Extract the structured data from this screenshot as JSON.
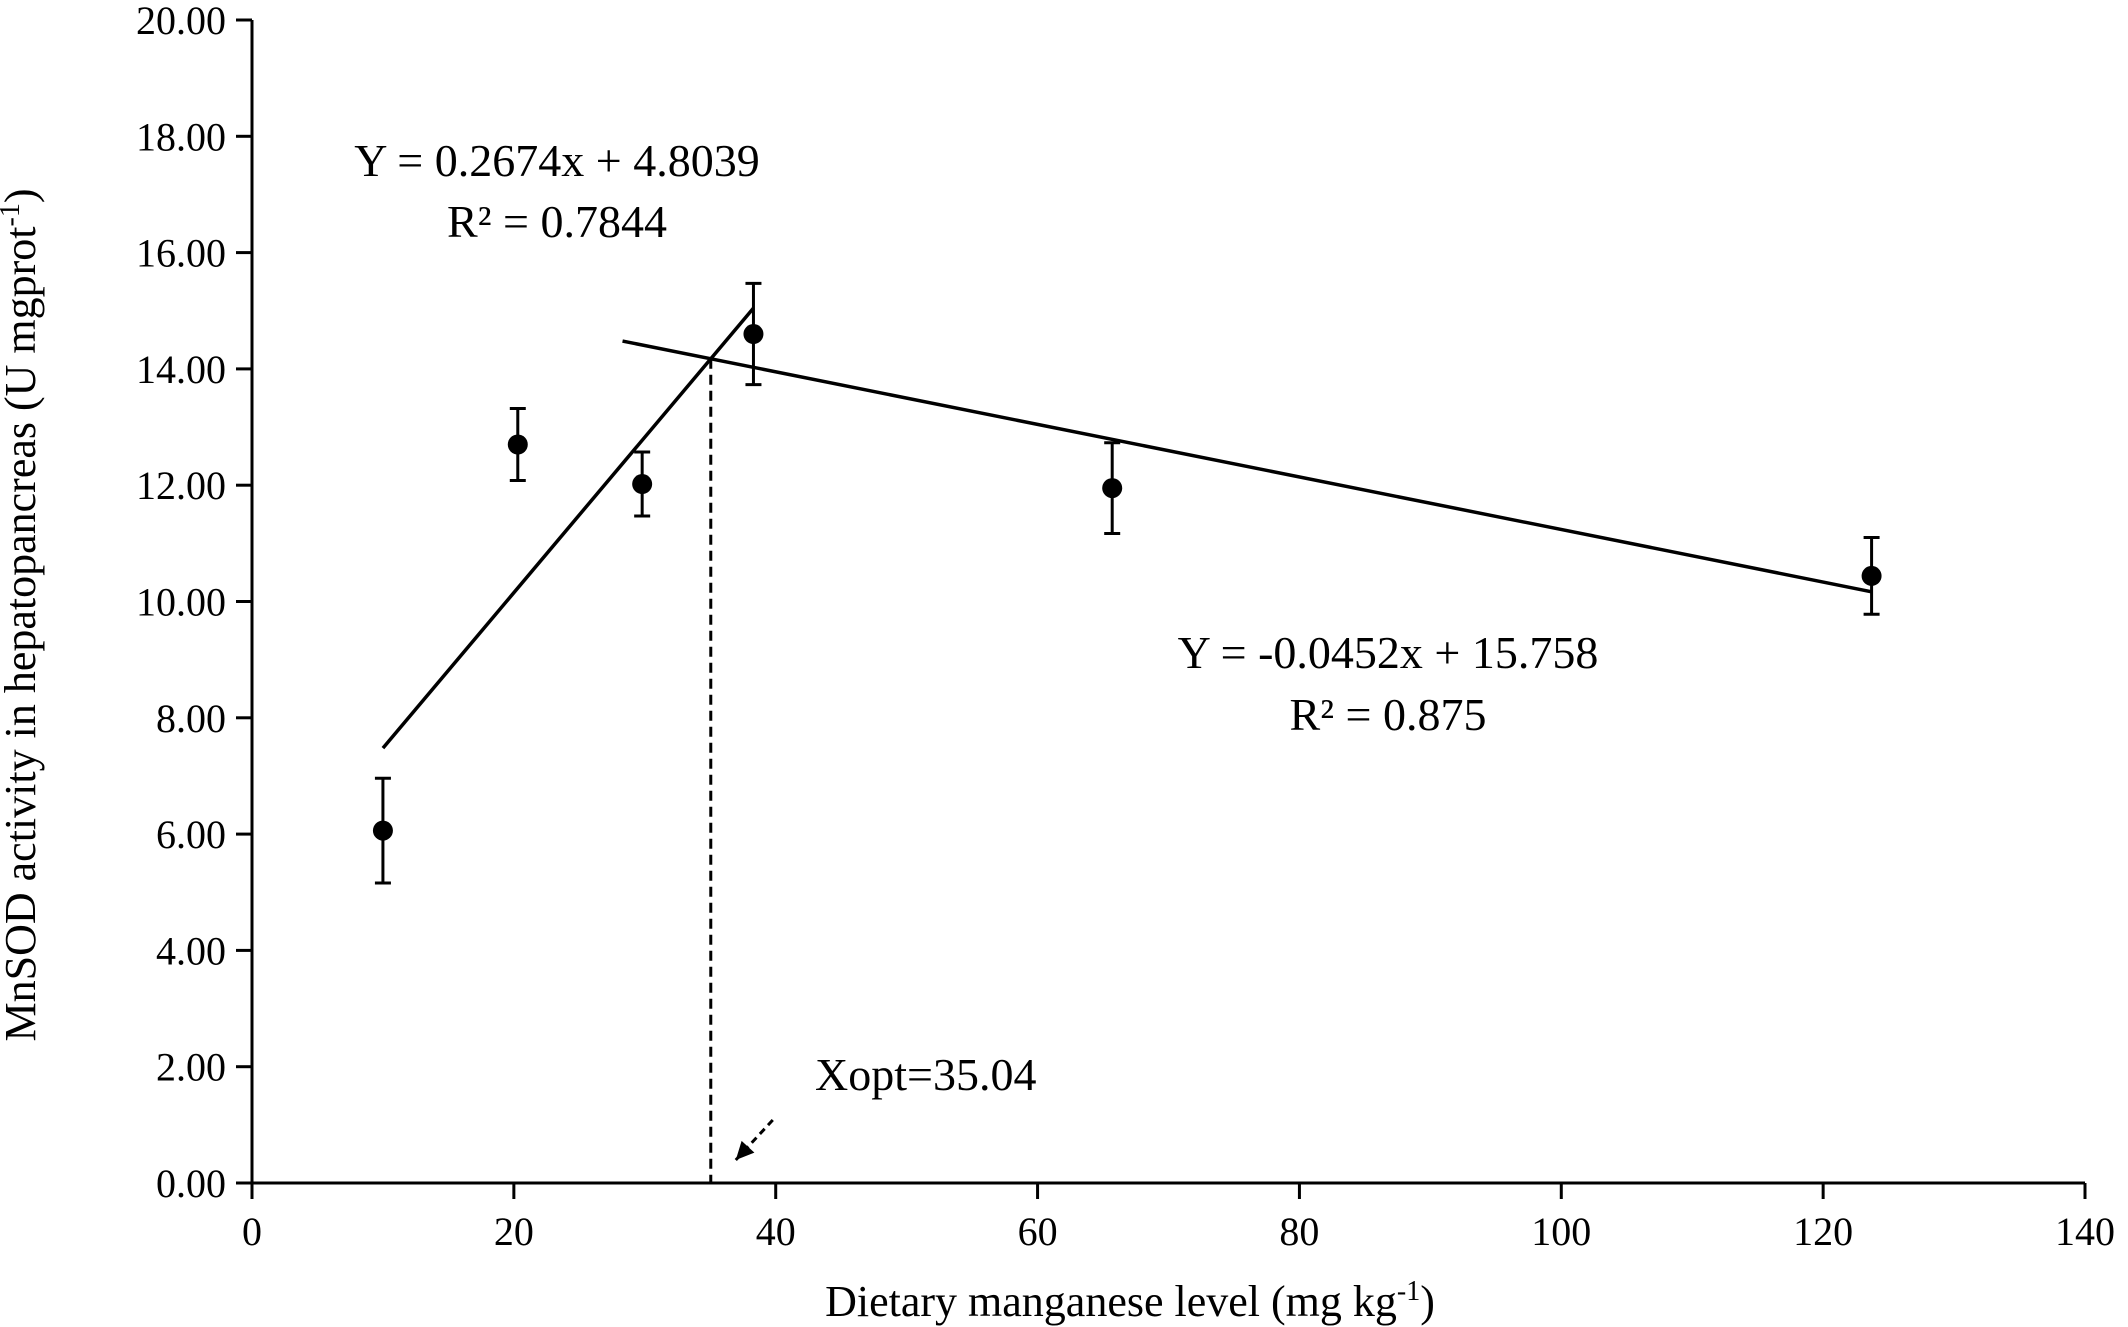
{
  "chart_data": {
    "type": "scatter",
    "title": "",
    "xlabel": "Dietary manganese level (mg kg",
    "xlabel_sup": "-1",
    "xlabel_end": ")",
    "ylabel": "MnSOD activity  in  hepatopancreas (U mgprot",
    "ylabel_sup": "-1",
    "ylabel_end": ")",
    "xlim": [
      0,
      140
    ],
    "ylim": [
      0,
      20
    ],
    "xticks": [
      "0",
      "20",
      "40",
      "60",
      "80",
      "100",
      "120",
      "140"
    ],
    "yticks": [
      "0.00",
      "2.00",
      "4.00",
      "6.00",
      "8.00",
      "10.00",
      "12.00",
      "14.00",
      "16.00",
      "18.00",
      "20.00"
    ],
    "grid": false,
    "legend": "none",
    "points": [
      {
        "x": 10.0,
        "y": 6.06,
        "err": 0.9
      },
      {
        "x": 20.3,
        "y": 12.7,
        "err": 0.62
      },
      {
        "x": 29.8,
        "y": 12.02,
        "err": 0.55
      },
      {
        "x": 38.3,
        "y": 14.6,
        "err": 0.87
      },
      {
        "x": 65.7,
        "y": 11.95,
        "err": 0.78
      },
      {
        "x": 123.7,
        "y": 10.44,
        "err": 0.66
      }
    ],
    "fit_lines": [
      {
        "slope": 0.2674,
        "intercept": 4.8039,
        "x_range": [
          10,
          38.3
        ]
      },
      {
        "slope": -0.0452,
        "intercept": 15.758,
        "x_range": [
          28.3,
          123.7
        ]
      }
    ],
    "xopt": 35.04,
    "annotations": {
      "eq1_line1": "Y = 0.2674x + 4.8039",
      "eq1_line2": "R² = 0.7844",
      "eq2_line1": "Y = -0.0452x + 15.758",
      "eq2_line2": "R² = 0.875",
      "xopt_label": "Xopt=35.04"
    }
  }
}
